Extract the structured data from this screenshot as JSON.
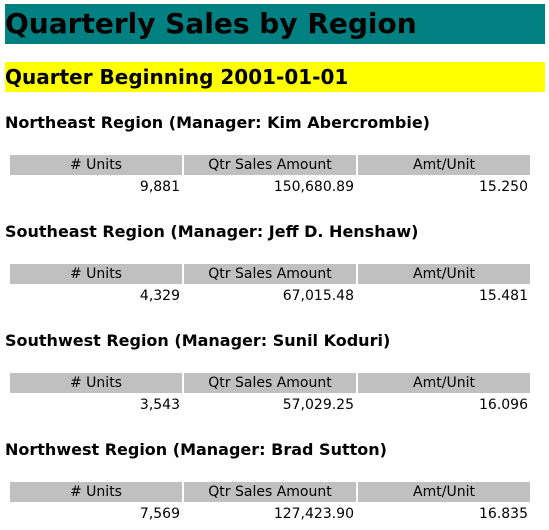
{
  "report": {
    "title": "Quarterly Sales by Region",
    "quarter_heading": "Quarter Beginning 2001-01-01",
    "column_headers": [
      "# Units",
      "Qtr Sales Amount",
      "Amt/Unit"
    ],
    "colors": {
      "title_background": "#008080",
      "quarter_background": "#ffff00",
      "header_background": "#c0c0c0"
    }
  },
  "regions": [
    {
      "title": "Northeast Region (Manager: Kim Abercrombie)",
      "units": "9,881",
      "sales_amount": "150,680.89",
      "amount_per_unit": "15.250"
    },
    {
      "title": "Southeast Region (Manager: Jeff D. Henshaw)",
      "units": "4,329",
      "sales_amount": "67,015.48",
      "amount_per_unit": "15.481"
    },
    {
      "title": "Southwest Region (Manager: Sunil Koduri)",
      "units": "3,543",
      "sales_amount": "57,029.25",
      "amount_per_unit": "16.096"
    },
    {
      "title": "Northwest Region (Manager: Brad Sutton)",
      "units": "7,569",
      "sales_amount": "127,423.90",
      "amount_per_unit": "16.835"
    }
  ]
}
